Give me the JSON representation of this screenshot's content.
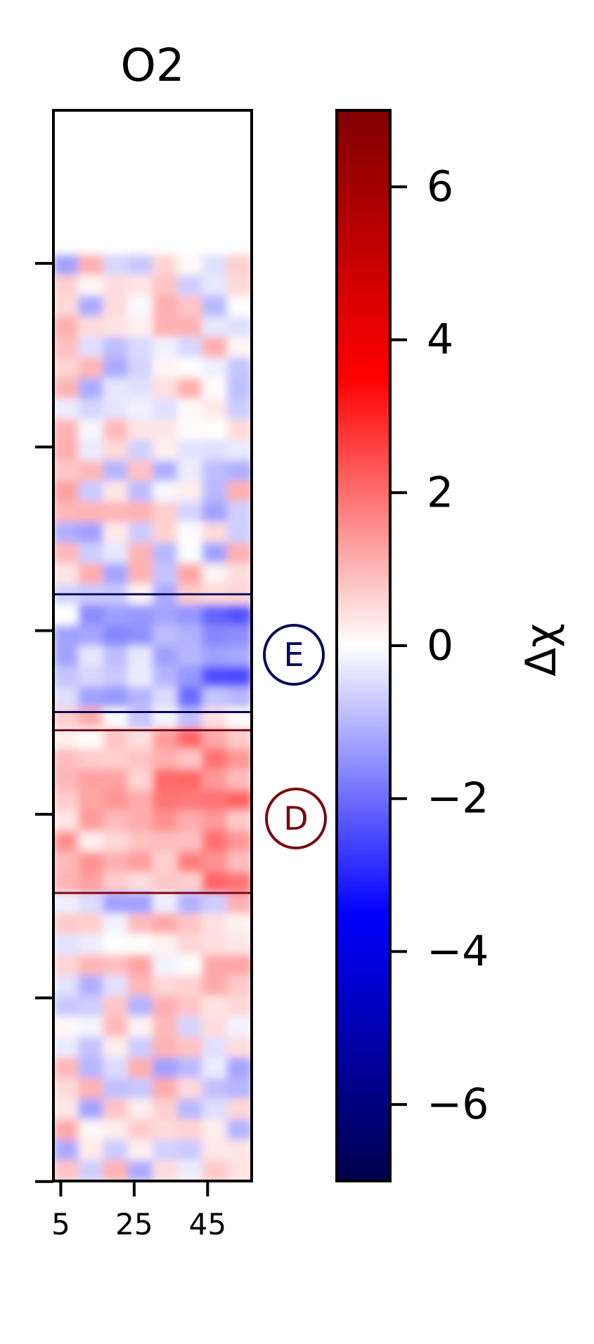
{
  "chart_data": {
    "type": "heatmap",
    "title": "O2",
    "xlabel": "",
    "ylabel": "",
    "x_ticks": [
      5,
      25,
      45
    ],
    "x_tick_labels": [
      "5",
      "25",
      "45"
    ],
    "xlim": [
      3,
      57
    ],
    "y_tick_count": 6,
    "y_tick_labels": [],
    "colormap": "seismic",
    "colorbar": {
      "label": "Δχ",
      "range": [
        -7,
        7
      ],
      "ticks": [
        6,
        4,
        2,
        0,
        -2,
        -4,
        -6
      ],
      "tick_labels": [
        "6",
        "4",
        "2",
        "0",
        "−2",
        "−4",
        "−6"
      ]
    },
    "colors": {
      "negative_extreme": "#00004c",
      "negative": "#0000ff",
      "zero": "#ffffff",
      "positive": "#ff0000",
      "positive_extreme": "#7f0000",
      "region_E": "#0a0a5c",
      "region_D": "#7a0a12"
    },
    "regions": [
      {
        "label": "E",
        "y_start": 0.452,
        "y_end": 0.562,
        "color": "#0a0a5c"
      },
      {
        "label": "D",
        "y_start": 0.579,
        "y_end": 0.731,
        "color": "#7a0a12"
      }
    ],
    "grid": false
  }
}
